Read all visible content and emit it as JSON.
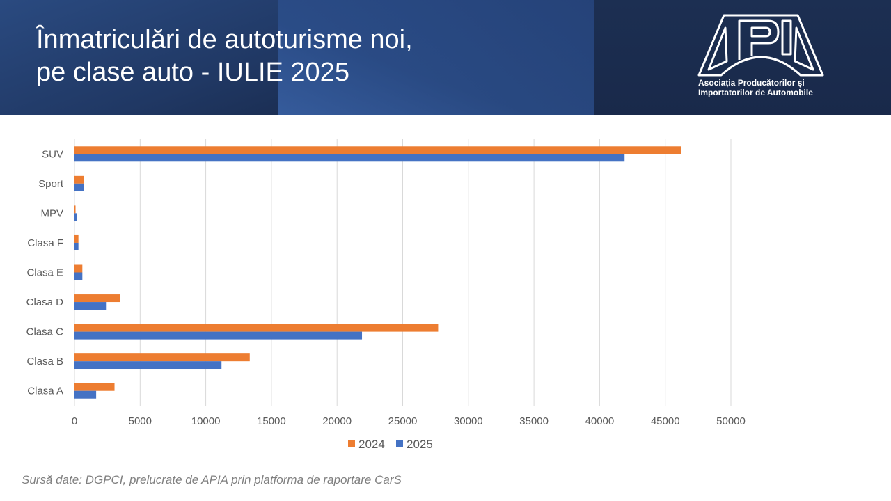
{
  "header": {
    "title_line1": "Înmatriculări de autoturisme noi,",
    "title_line2": "pe clase auto - IULIE 2025",
    "logo_name": "APIA",
    "logo_subtitle_line1": "Asociația Producătorilor și",
    "logo_subtitle_line2": "Importatorilor de Automobile"
  },
  "footer": {
    "source": "Sursă date: DGPCI, prelucrate de APIA prin platforma de raportare CarS"
  },
  "colors": {
    "series_2024": "#ed7d31",
    "series_2025": "#4472c4",
    "grid": "#d9d9d9",
    "axis_text": "#595959"
  },
  "chart_data": {
    "type": "bar",
    "orientation": "horizontal",
    "title": "Înmatriculări de autoturisme noi, pe clase auto - IULIE 2025",
    "xlabel": "",
    "ylabel": "",
    "categories": [
      "Clasa A",
      "Clasa B",
      "Clasa C",
      "Clasa D",
      "Clasa E",
      "Clasa F",
      "MPV",
      "Sport",
      "SUV"
    ],
    "series": [
      {
        "name": "2024",
        "values": [
          3050,
          13350,
          27700,
          3450,
          600,
          300,
          80,
          700,
          46200
        ]
      },
      {
        "name": "2025",
        "values": [
          1650,
          11200,
          21900,
          2400,
          600,
          300,
          180,
          700,
          41900
        ]
      }
    ],
    "xlim": [
      0,
      50000
    ],
    "xticks": [
      0,
      5000,
      10000,
      15000,
      20000,
      25000,
      30000,
      35000,
      40000,
      45000,
      50000
    ],
    "grid": true,
    "legend": {
      "position": "bottom",
      "entries": [
        "2024",
        "2025"
      ]
    }
  }
}
